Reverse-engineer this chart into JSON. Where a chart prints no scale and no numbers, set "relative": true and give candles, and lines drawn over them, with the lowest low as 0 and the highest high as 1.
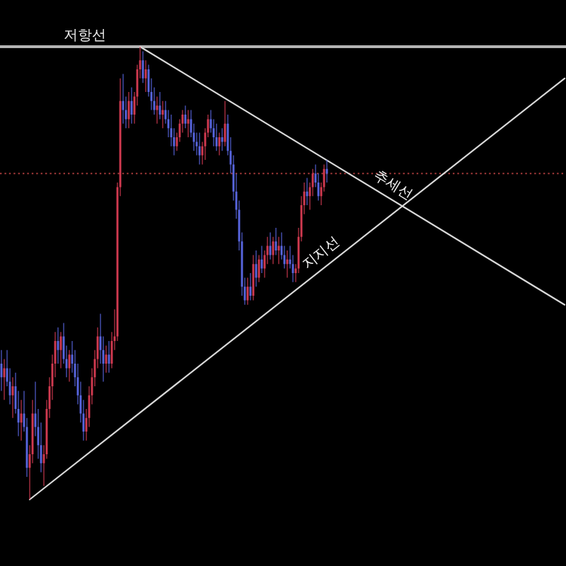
{
  "chart_data": {
    "type": "candlestick",
    "relative": true,
    "categories": [
      null,
      null,
      null,
      null,
      null,
      null,
      null,
      null,
      null,
      null,
      null,
      null,
      null,
      null,
      null,
      null,
      null,
      null,
      null,
      null,
      null,
      null,
      null,
      null,
      null,
      null,
      null,
      null,
      null,
      null,
      null,
      null,
      null,
      null,
      null,
      null,
      null,
      null,
      null,
      null,
      null,
      null,
      null,
      null,
      null,
      null,
      null,
      null,
      null,
      null,
      null,
      null,
      null,
      null,
      null,
      null,
      null,
      null,
      null,
      null,
      null,
      null,
      null,
      null,
      null,
      null,
      null,
      null,
      null,
      null,
      null,
      null,
      null,
      null,
      null,
      null,
      null,
      null,
      null,
      null,
      null,
      null,
      null,
      null,
      null,
      null,
      null,
      null,
      null,
      null,
      null,
      null,
      null,
      null,
      null,
      null,
      null,
      null,
      null,
      null,
      null,
      null,
      null,
      null,
      null,
      null,
      null,
      null,
      null,
      null,
      null,
      null,
      null,
      null,
      null,
      null,
      null,
      null,
      null,
      null,
      null,
      null,
      null,
      null,
      null,
      null,
      null,
      null,
      null,
      null,
      null,
      null,
      null,
      null,
      null,
      null,
      null,
      null,
      null,
      null,
      null,
      null,
      null,
      null,
      null,
      null,
      null,
      null,
      null,
      null,
      null,
      null,
      null,
      null,
      null,
      null,
      null,
      null,
      null,
      null,
      null,
      null,
      null,
      null,
      null,
      null,
      null,
      null,
      null,
      null,
      null,
      null,
      null,
      null,
      null,
      null,
      null,
      null,
      null,
      null,
      null,
      null,
      null,
      null,
      null,
      null,
      null,
      null,
      null,
      null,
      null,
      null,
      null,
      null,
      null,
      null,
      null,
      null,
      null,
      null
    ],
    "ohlc": [
      [
        0.3,
        0.33,
        0.24,
        0.27
      ],
      [
        0.27,
        0.31,
        0.22,
        0.29
      ],
      [
        0.29,
        0.33,
        0.25,
        0.26
      ],
      [
        0.26,
        0.29,
        0.21,
        0.23
      ],
      [
        0.23,
        0.27,
        0.18,
        0.25
      ],
      [
        0.25,
        0.28,
        0.19,
        0.2
      ],
      [
        0.2,
        0.24,
        0.14,
        0.17
      ],
      [
        0.17,
        0.22,
        0.13,
        0.19
      ],
      [
        0.19,
        0.24,
        0.15,
        0.16
      ],
      [
        0.16,
        0.18,
        0.05,
        0.07
      ],
      [
        0.07,
        0.12,
        0,
        0.1
      ],
      [
        0.1,
        0.22,
        0.08,
        0.19
      ],
      [
        0.19,
        0.26,
        0.14,
        0.16
      ],
      [
        0.16,
        0.2,
        0.09,
        0.12
      ],
      [
        0.12,
        0.17,
        0.06,
        0.08
      ],
      [
        0.08,
        0.12,
        0.03,
        0.1
      ],
      [
        0.1,
        0.22,
        0.09,
        0.2
      ],
      [
        0.2,
        0.27,
        0.18,
        0.25
      ],
      [
        0.25,
        0.32,
        0.22,
        0.3
      ],
      [
        0.3,
        0.37,
        0.27,
        0.35
      ],
      [
        0.35,
        0.38,
        0.3,
        0.33
      ],
      [
        0.33,
        0.37,
        0.29,
        0.36
      ],
      [
        0.36,
        0.39,
        0.3,
        0.31
      ],
      [
        0.31,
        0.34,
        0.27,
        0.29
      ],
      [
        0.29,
        0.33,
        0.26,
        0.32
      ],
      [
        0.32,
        0.35,
        0.28,
        0.3
      ],
      [
        0.3,
        0.33,
        0.25,
        0.27
      ],
      [
        0.27,
        0.3,
        0.21,
        0.23
      ],
      [
        0.23,
        0.26,
        0.17,
        0.19
      ],
      [
        0.19,
        0.22,
        0.13,
        0.15
      ],
      [
        0.15,
        0.2,
        0.13,
        0.18
      ],
      [
        0.18,
        0.25,
        0.16,
        0.23
      ],
      [
        0.23,
        0.29,
        0.21,
        0.27
      ],
      [
        0.27,
        0.33,
        0.25,
        0.31
      ],
      [
        0.31,
        0.38,
        0.29,
        0.36
      ],
      [
        0.36,
        0.41,
        0.3,
        0.33
      ],
      [
        0.33,
        0.36,
        0.26,
        0.3
      ],
      [
        0.3,
        0.34,
        0.28,
        0.32
      ],
      [
        0.32,
        0.35,
        0.28,
        0.3
      ],
      [
        0.3,
        0.37,
        0.29,
        0.35
      ],
      [
        0.35,
        0.42,
        0.33,
        0.36
      ],
      [
        0.36,
        0.7,
        0.35,
        0.69
      ],
      [
        0.69,
        0.93,
        0.67,
        0.88
      ],
      [
        0.88,
        0.94,
        0.83,
        0.86
      ],
      [
        0.86,
        0.89,
        0.82,
        0.84
      ],
      [
        0.84,
        0.9,
        0.82,
        0.88
      ],
      [
        0.88,
        0.91,
        0.83,
        0.85
      ],
      [
        0.85,
        0.9,
        0.83,
        0.89
      ],
      [
        0.89,
        0.96,
        0.87,
        0.95
      ],
      [
        0.95,
        1,
        0.93,
        0.97
      ],
      [
        0.97,
        0.99,
        0.92,
        0.93
      ],
      [
        0.93,
        0.97,
        0.9,
        0.95
      ],
      [
        0.95,
        0.96,
        0.89,
        0.9
      ],
      [
        0.9,
        0.93,
        0.86,
        0.88
      ],
      [
        0.88,
        0.91,
        0.85,
        0.86
      ],
      [
        0.86,
        0.89,
        0.83,
        0.87
      ],
      [
        0.87,
        0.9,
        0.84,
        0.85
      ],
      [
        0.85,
        0.88,
        0.82,
        0.86
      ],
      [
        0.86,
        0.88,
        0.83,
        0.84
      ],
      [
        0.84,
        0.86,
        0.8,
        0.82
      ],
      [
        0.82,
        0.85,
        0.78,
        0.8
      ],
      [
        0.8,
        0.82,
        0.76,
        0.78
      ],
      [
        0.78,
        0.81,
        0.77,
        0.8
      ],
      [
        0.8,
        0.84,
        0.79,
        0.83
      ],
      [
        0.83,
        0.86,
        0.81,
        0.85
      ],
      [
        0.85,
        0.87,
        0.82,
        0.83
      ],
      [
        0.83,
        0.86,
        0.8,
        0.84
      ],
      [
        0.84,
        0.86,
        0.8,
        0.81
      ],
      [
        0.81,
        0.83,
        0.77,
        0.79
      ],
      [
        0.79,
        0.81,
        0.76,
        0.78
      ],
      [
        0.78,
        0.81,
        0.74,
        0.76
      ],
      [
        0.76,
        0.79,
        0.74,
        0.78
      ],
      [
        0.78,
        0.82,
        0.75,
        0.81
      ],
      [
        0.81,
        0.85,
        0.8,
        0.84
      ],
      [
        0.84,
        0.86,
        0.81,
        0.82
      ],
      [
        0.82,
        0.84,
        0.78,
        0.8
      ],
      [
        0.8,
        0.83,
        0.77,
        0.78
      ],
      [
        0.78,
        0.81,
        0.76,
        0.8
      ],
      [
        0.8,
        0.82,
        0.77,
        0.79
      ],
      [
        0.79,
        0.88,
        0.78,
        0.83
      ],
      [
        0.83,
        0.85,
        0.76,
        0.77
      ],
      [
        0.77,
        0.8,
        0.72,
        0.74
      ],
      [
        0.74,
        0.76,
        0.66,
        0.68
      ],
      [
        0.68,
        0.72,
        0.62,
        0.64
      ],
      [
        0.64,
        0.66,
        0.55,
        0.57
      ],
      [
        0.57,
        0.59,
        0.45,
        0.47
      ],
      [
        0.47,
        0.49,
        0.43,
        0.44
      ],
      [
        0.44,
        0.49,
        0.43,
        0.47
      ],
      [
        0.47,
        0.5,
        0.44,
        0.45
      ],
      [
        0.45,
        0.54,
        0.44,
        0.52
      ],
      [
        0.52,
        0.55,
        0.47,
        0.49
      ],
      [
        0.49,
        0.54,
        0.48,
        0.53
      ],
      [
        0.53,
        0.56,
        0.5,
        0.51
      ],
      [
        0.51,
        0.55,
        0.49,
        0.54
      ],
      [
        0.54,
        0.58,
        0.52,
        0.56
      ],
      [
        0.56,
        0.59,
        0.53,
        0.54
      ],
      [
        0.54,
        0.58,
        0.52,
        0.57
      ],
      [
        0.57,
        0.6,
        0.54,
        0.55
      ],
      [
        0.55,
        0.58,
        0.52,
        0.56
      ],
      [
        0.56,
        0.59,
        0.53,
        0.54
      ],
      [
        0.54,
        0.56,
        0.51,
        0.52
      ],
      [
        0.52,
        0.55,
        0.49,
        0.53
      ],
      [
        0.53,
        0.56,
        0.51,
        0.52
      ],
      [
        0.52,
        0.54,
        0.48,
        0.5
      ],
      [
        0.5,
        0.52,
        0.48,
        0.51
      ],
      [
        0.51,
        0.6,
        0.5,
        0.58
      ],
      [
        0.58,
        0.67,
        0.57,
        0.65
      ],
      [
        0.65,
        0.7,
        0.63,
        0.68
      ],
      [
        0.68,
        0.71,
        0.65,
        0.67
      ],
      [
        0.67,
        0.7,
        0.64,
        0.69
      ],
      [
        0.69,
        0.73,
        0.67,
        0.72
      ],
      [
        0.72,
        0.74,
        0.69,
        0.7
      ],
      [
        0.7,
        0.72,
        0.66,
        0.67
      ],
      [
        0.67,
        0.7,
        0.65,
        0.69
      ],
      [
        0.69,
        0.74,
        0.68,
        0.73
      ],
      [
        0.73,
        0.75,
        0.7,
        0.72
      ],
      null,
      null,
      null,
      null,
      null,
      null,
      null,
      null,
      null,
      null,
      null,
      null,
      null,
      null,
      null,
      null,
      null,
      null,
      null,
      null,
      null,
      null,
      null,
      null,
      null,
      null,
      null,
      null,
      null,
      null,
      null,
      null,
      null,
      null,
      null,
      null,
      null,
      null,
      null,
      null,
      null,
      null,
      null,
      null,
      null,
      null,
      null,
      null,
      null,
      null,
      null,
      null,
      null,
      null,
      null,
      null,
      null,
      null,
      null,
      null,
      null,
      null,
      null,
      null,
      null,
      null,
      null,
      null,
      null,
      null,
      null,
      null,
      null,
      null,
      null,
      null,
      null,
      null,
      null,
      null,
      null,
      null,
      null,
      null
    ],
    "colors": [
      "#5866e0",
      "#d23a50",
      "#5866e0",
      "#5866e0",
      "#d23a50",
      "#5866e0",
      "#5866e0",
      "#d23a50",
      "#5866e0",
      "#5866e0",
      "#d23a50",
      "#d23a50",
      "#5866e0",
      "#5866e0",
      "#5866e0",
      "#d23a50",
      "#d23a50",
      "#d23a50",
      "#d23a50",
      "#d23a50",
      "#5866e0",
      "#d23a50",
      "#5866e0",
      "#5866e0",
      "#d23a50",
      "#5866e0",
      "#5866e0",
      "#5866e0",
      "#5866e0",
      "#5866e0",
      "#d23a50",
      "#d23a50",
      "#d23a50",
      "#d23a50",
      "#d23a50",
      "#5866e0",
      "#5866e0",
      "#d23a50",
      "#5866e0",
      "#d23a50",
      "#d23a50",
      "#d23a50",
      "#d23a50",
      "#5866e0",
      "#5866e0",
      "#d23a50",
      "#5866e0",
      "#d23a50",
      "#d23a50",
      "#d23a50",
      "#5866e0",
      "#d23a50",
      "#5866e0",
      "#5866e0",
      "#5866e0",
      "#d23a50",
      "#5866e0",
      "#d23a50",
      "#5866e0",
      "#5866e0",
      "#5866e0",
      "#5866e0",
      "#d23a50",
      "#d23a50",
      "#d23a50",
      "#5866e0",
      "#d23a50",
      "#5866e0",
      "#5866e0",
      "#5866e0",
      "#5866e0",
      "#d23a50",
      "#d23a50",
      "#d23a50",
      "#5866e0",
      "#5866e0",
      "#5866e0",
      "#d23a50",
      "#5866e0",
      "#d23a50",
      "#5866e0",
      "#5866e0",
      "#5866e0",
      "#5866e0",
      "#5866e0",
      "#5866e0",
      "#5866e0",
      "#d23a50",
      "#5866e0",
      "#d23a50",
      "#5866e0",
      "#d23a50",
      "#5866e0",
      "#d23a50",
      "#d23a50",
      "#5866e0",
      "#d23a50",
      "#5866e0",
      "#d23a50",
      "#5866e0",
      "#5866e0",
      "#d23a50",
      "#5866e0",
      "#5866e0",
      "#d23a50",
      "#d23a50",
      "#d23a50",
      "#d23a50",
      "#5866e0",
      "#d23a50",
      "#d23a50",
      "#5866e0",
      "#5866e0",
      "#d23a50",
      "#d23a50",
      "#5866e0",
      null,
      null,
      null,
      null,
      null,
      null,
      null,
      null,
      null,
      null,
      null,
      null,
      null,
      null,
      null,
      null,
      null,
      null,
      null,
      null,
      null,
      null,
      null,
      null,
      null,
      null,
      null,
      null,
      null,
      null,
      null,
      null,
      null,
      null,
      null,
      null,
      null,
      null,
      null,
      null,
      null,
      null,
      null,
      null,
      null,
      null,
      null,
      null,
      null,
      null,
      null,
      null,
      null,
      null,
      null,
      null,
      null,
      null,
      null,
      null,
      null,
      null,
      null,
      null,
      null,
      null,
      null,
      null,
      null,
      null,
      null,
      null,
      null,
      null,
      null,
      null,
      null,
      null,
      null,
      null,
      null,
      null,
      null,
      null
    ],
    "series": [
      {
        "name": "추세선",
        "type": "line",
        "color": "#d8d8d8",
        "values": [
          null,
          null,
          null,
          null,
          null,
          null,
          null,
          null,
          null,
          null,
          null,
          null,
          null,
          null,
          null,
          null,
          null,
          null,
          null,
          null,
          null,
          null,
          null,
          null,
          null,
          null,
          null,
          null,
          null,
          null,
          null,
          null,
          null,
          null,
          null,
          null,
          null,
          null,
          null,
          null,
          null,
          null,
          null,
          null,
          null,
          null,
          null,
          null,
          null,
          1,
          null,
          null,
          null,
          null,
          null,
          null,
          null,
          null,
          null,
          null,
          null,
          null,
          null,
          null,
          null,
          null,
          null,
          null,
          null,
          null,
          null,
          null,
          null,
          null,
          null,
          null,
          null,
          null,
          null,
          null,
          null,
          null,
          null,
          null,
          null,
          null,
          null,
          null,
          null,
          null,
          null,
          null,
          null,
          null,
          null,
          null,
          null,
          null,
          null,
          null,
          null,
          null,
          null,
          null,
          null,
          null,
          null,
          null,
          null,
          null,
          null,
          null,
          null,
          null,
          null,
          null,
          null,
          null,
          null,
          null,
          null,
          null,
          null,
          null,
          null,
          null,
          null,
          null,
          null,
          null,
          null,
          null,
          null,
          null,
          null,
          null,
          null,
          null,
          null,
          null,
          null,
          null,
          null,
          null,
          null,
          null,
          null,
          null,
          null,
          null,
          null,
          null,
          null,
          null,
          null,
          null,
          null,
          null,
          null,
          null,
          null,
          null,
          null,
          null,
          null,
          null,
          null,
          null,
          null,
          null,
          null,
          null,
          null,
          null,
          null,
          null,
          null,
          null,
          null,
          null,
          null,
          null,
          null,
          null,
          null,
          null,
          null,
          null,
          null,
          null,
          null,
          null,
          null,
          null,
          null,
          null,
          null,
          null,
          null,
          0.43
        ]
      },
      {
        "name": "지지선",
        "type": "line",
        "color": "#d8d8d8",
        "values": [
          null,
          null,
          null,
          null,
          null,
          null,
          null,
          null,
          null,
          null,
          0,
          null,
          null,
          null,
          null,
          null,
          null,
          null,
          null,
          null,
          null,
          null,
          null,
          null,
          null,
          null,
          null,
          null,
          null,
          null,
          null,
          null,
          null,
          null,
          null,
          null,
          null,
          null,
          null,
          null,
          null,
          null,
          null,
          null,
          null,
          null,
          null,
          null,
          null,
          null,
          null,
          null,
          null,
          null,
          null,
          null,
          null,
          null,
          null,
          null,
          null,
          null,
          null,
          null,
          null,
          null,
          null,
          null,
          null,
          null,
          null,
          null,
          null,
          null,
          null,
          null,
          null,
          null,
          null,
          null,
          null,
          null,
          null,
          null,
          null,
          null,
          null,
          null,
          null,
          null,
          null,
          null,
          null,
          null,
          null,
          null,
          null,
          null,
          null,
          null,
          null,
          null,
          null,
          null,
          null,
          null,
          null,
          null,
          null,
          null,
          null,
          null,
          null,
          null,
          null,
          null,
          null,
          null,
          null,
          null,
          null,
          null,
          null,
          null,
          null,
          null,
          null,
          null,
          null,
          null,
          null,
          null,
          null,
          null,
          null,
          null,
          null,
          null,
          null,
          null,
          null,
          null,
          null,
          null,
          null,
          null,
          null,
          null,
          null,
          null,
          null,
          null,
          null,
          null,
          null,
          null,
          null,
          null,
          null,
          null,
          null,
          null,
          null,
          null,
          null,
          null,
          null,
          null,
          null,
          null,
          null,
          null,
          null,
          null,
          null,
          null,
          null,
          null,
          null,
          null,
          null,
          null,
          null,
          null,
          null,
          null,
          null,
          null,
          null,
          null,
          null,
          null,
          null,
          null,
          null,
          null,
          null,
          null,
          null,
          0.93
        ]
      }
    ],
    "ref_lines": [
      {
        "axis": "y",
        "value": 1,
        "label": "저항선",
        "color": "#b4b4b4"
      },
      {
        "axis": "y",
        "value": 0.72,
        "color": "#a33a3a",
        "line_style": "dotted"
      }
    ]
  }
}
